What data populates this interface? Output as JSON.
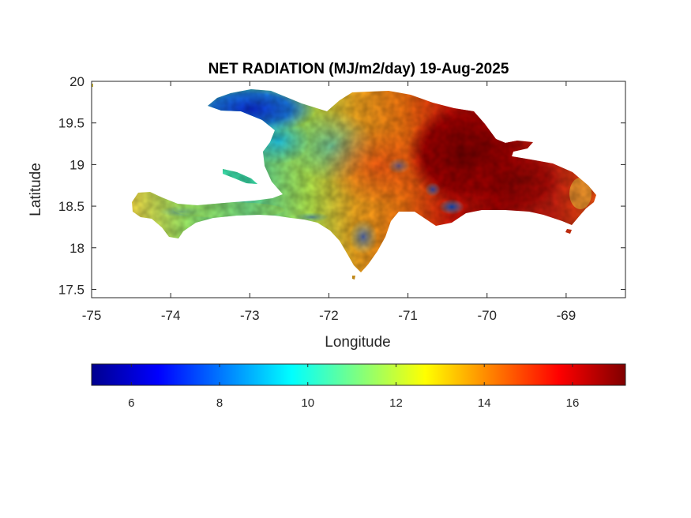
{
  "chart_data": {
    "type": "heatmap",
    "title": "NET RADIATION (MJ/m2/day) 19-Aug-2025",
    "xlabel": "Longitude",
    "ylabel": "Latitude",
    "xlim": [
      -75,
      -68.25
    ],
    "ylim": [
      17.4,
      20
    ],
    "x_ticks": [
      -75,
      -74,
      -73,
      -72,
      -71,
      -70,
      -69
    ],
    "x_tick_labels": [
      "-75",
      "-74",
      "-73",
      "-72",
      "-71",
      "-70",
      "-69"
    ],
    "y_ticks": [
      17.5,
      18,
      18.5,
      19,
      19.5,
      20
    ],
    "y_tick_labels": [
      "17.5",
      "18",
      "18.5",
      "19",
      "19.5",
      "20"
    ],
    "grid": false,
    "colorbar": {
      "orientation": "horizontal",
      "placement": "bottom",
      "colormap": "jet",
      "range": [
        5.1,
        17.2
      ],
      "ticks": [
        6,
        8,
        10,
        12,
        14,
        16
      ],
      "tick_labels": [
        "6",
        "8",
        "10",
        "12",
        "14",
        "16"
      ]
    },
    "value_pattern": [
      {
        "region": "northwest peninsula (Haiti)",
        "approx_value": 7
      },
      {
        "region": "Ile de la Tortue",
        "approx_value": 10.5
      },
      {
        "region": "central Haiti",
        "approx_value": 11
      },
      {
        "region": "southern peninsula (Haiti)",
        "approx_value": 12.5
      },
      {
        "region": "central Hispaniola",
        "approx_value": 13.5
      },
      {
        "region": "eastern Dominican Republic",
        "approx_value": 16.5
      },
      {
        "region": "southeast coast",
        "approx_value": 14.5
      }
    ]
  },
  "colors": {
    "jet_stops": [
      "#00008f",
      "#0000ff",
      "#00ffff",
      "#ffff00",
      "#ff0000",
      "#800000"
    ],
    "axis": "#262626",
    "background": "#ffffff"
  }
}
